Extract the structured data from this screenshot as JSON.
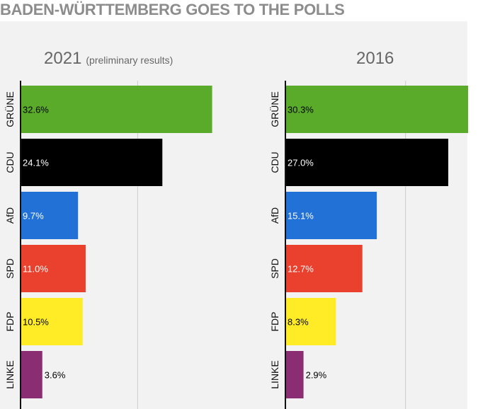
{
  "title": "BADEN-WÜRTTEMBERG GOES TO THE POLLS",
  "colors": {
    "background_panel": "#f2f2f2",
    "title": "#8c8c8c",
    "panel_heading": "#666666",
    "grid": "#cccccc",
    "axis": "#111111"
  },
  "chart_data": [
    {
      "type": "bar",
      "orientation": "horizontal",
      "title": "2021",
      "subtitle": "(preliminary results)",
      "categories": [
        "GRÜNE",
        "CDU",
        "AfD",
        "SPD",
        "FDP",
        "LINKE"
      ],
      "values": [
        32.6,
        24.1,
        9.7,
        11.0,
        10.5,
        3.6
      ],
      "labels": [
        "32.6%",
        "24.1%",
        "9.7%",
        "11.0%",
        "10.5%",
        "3.6%"
      ],
      "colors": [
        "#5aab2a",
        "#000000",
        "#2271d6",
        "#e9412e",
        "#ffec27",
        "#8a2d73"
      ],
      "label_colors": [
        "#000000",
        "#ffffff",
        "#ffffff",
        "#ffffff",
        "#000000",
        "#000000"
      ],
      "xlim": [
        0,
        33.5
      ],
      "gridlines": [
        20
      ]
    },
    {
      "type": "bar",
      "orientation": "horizontal",
      "title": "2016",
      "subtitle": "",
      "categories": [
        "GRÜNE",
        "CDU",
        "AfD",
        "SPD",
        "FDP",
        "LINKE"
      ],
      "values": [
        30.3,
        27.0,
        15.1,
        12.7,
        8.3,
        2.9
      ],
      "labels": [
        "30.3%",
        "27.0%",
        "15.1%",
        "12.7%",
        "8.3%",
        "2.9%"
      ],
      "colors": [
        "#5aab2a",
        "#000000",
        "#2271d6",
        "#e9412e",
        "#ffec27",
        "#8a2d73"
      ],
      "label_colors": [
        "#000000",
        "#ffffff",
        "#ffffff",
        "#ffffff",
        "#000000",
        "#000000"
      ],
      "xlim": [
        0,
        30.3
      ],
      "gridlines": [
        20
      ]
    }
  ]
}
